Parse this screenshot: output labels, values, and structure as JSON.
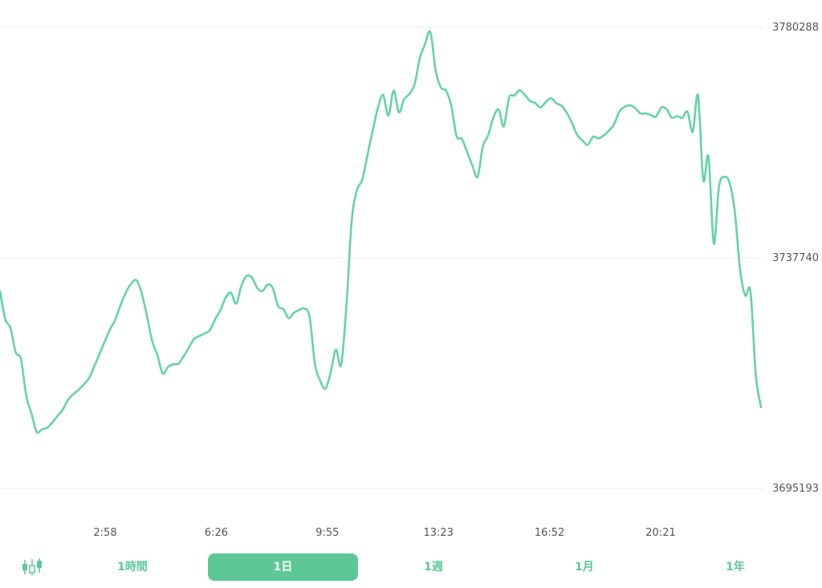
{
  "colors": {
    "line": "#66d3a4",
    "accent": "#5dc896",
    "accent_text": "#ffffff",
    "inactive_text": "#5dc896"
  },
  "chart_data": {
    "type": "line",
    "x_ticks": [
      "2:58",
      "6:26",
      "9:55",
      "13:23",
      "16:52",
      "20:21"
    ],
    "y_ticks": [
      "3780288",
      "3737740",
      "3695193"
    ],
    "ylim": [
      3695193,
      3780288
    ],
    "grid": true,
    "series": [
      {
        "values": [
          3731600,
          3726400,
          3724800,
          3720300,
          3719000,
          3712300,
          3709000,
          3705600,
          3706100,
          3706400,
          3707400,
          3708600,
          3709800,
          3711600,
          3712600,
          3713400,
          3714400,
          3715600,
          3717800,
          3720100,
          3722400,
          3724600,
          3726400,
          3729100,
          3731400,
          3733000,
          3733600,
          3731200,
          3727000,
          3722400,
          3719800,
          3716400,
          3717600,
          3718100,
          3718200,
          3719600,
          3721200,
          3722800,
          3723300,
          3723800,
          3724400,
          3726400,
          3728100,
          3730400,
          3731300,
          3729300,
          3732600,
          3734400,
          3734100,
          3732200,
          3731600,
          3732800,
          3732100,
          3728800,
          3728300,
          3726600,
          3727600,
          3728100,
          3728400,
          3726800,
          3718200,
          3715100,
          3713600,
          3716600,
          3720800,
          3718000,
          3728800,
          3744400,
          3750200,
          3752100,
          3756600,
          3761200,
          3765400,
          3767800,
          3764000,
          3768600,
          3764600,
          3767000,
          3768000,
          3769800,
          3774600,
          3777200,
          3779400,
          3772400,
          3769200,
          3768600,
          3765700,
          3760200,
          3759700,
          3757300,
          3754800,
          3752700,
          3758300,
          3760300,
          3763600,
          3765100,
          3762000,
          3767300,
          3767700,
          3768700,
          3767800,
          3766700,
          3766300,
          3765500,
          3766500,
          3767200,
          3766300,
          3765800,
          3764500,
          3762600,
          3760400,
          3759400,
          3758600,
          3760100,
          3759800,
          3760300,
          3761200,
          3762400,
          3764700,
          3765600,
          3765900,
          3765400,
          3764400,
          3764400,
          3764100,
          3763800,
          3765500,
          3765200,
          3763600,
          3763900,
          3763600,
          3764700,
          3761000,
          3767700,
          3752100,
          3756400,
          3740400,
          3750900,
          3752700,
          3751600,
          3746400,
          3735700,
          3730800,
          3731500,
          3716200,
          3710200
        ]
      }
    ]
  },
  "range_selector": {
    "candle_icon": "candlestick-icon",
    "items": [
      {
        "label": "1時間",
        "active": false
      },
      {
        "label": "1日",
        "active": true
      },
      {
        "label": "1週",
        "active": false
      },
      {
        "label": "1月",
        "active": false
      },
      {
        "label": "1年",
        "active": false
      }
    ]
  }
}
